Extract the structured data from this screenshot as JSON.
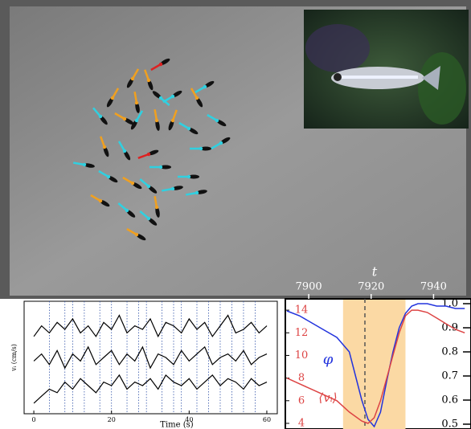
{
  "chart_data": [
    {
      "type": "line",
      "xlabel": "Time (s)",
      "ylabel": "vᵢ (cm/s)",
      "xlim": [
        -2.5,
        62.7
      ],
      "xticks": [
        0,
        20,
        40,
        60
      ],
      "ylim": [
        0,
        32
      ],
      "x": [
        0,
        2,
        4,
        6,
        8,
        10,
        12,
        14,
        16,
        18,
        20,
        22,
        24,
        26,
        28,
        30,
        32,
        34,
        36,
        38,
        40,
        42,
        44,
        46,
        48,
        50,
        52,
        54,
        56,
        58,
        60
      ],
      "series": [
        {
          "color": "#000000",
          "values": [
            22,
            25,
            23,
            26,
            24,
            27,
            23,
            25,
            22,
            26,
            24,
            28,
            23,
            25,
            24,
            27,
            22,
            26,
            25,
            23,
            27,
            24,
            26,
            22,
            25,
            28,
            23,
            24,
            26,
            23,
            25
          ]
        },
        {
          "color": "#000000",
          "values": [
            15,
            17,
            14,
            18,
            13,
            17,
            15,
            19,
            14,
            16,
            18,
            14,
            17,
            15,
            19,
            13,
            17,
            16,
            14,
            18,
            15,
            17,
            19,
            14,
            16,
            17,
            15,
            18,
            14,
            16,
            17
          ]
        },
        {
          "color": "#000000",
          "values": [
            3,
            5,
            7,
            6,
            9,
            7,
            10,
            8,
            6,
            9,
            8,
            11,
            7,
            9,
            8,
            10,
            7,
            11,
            9,
            8,
            10,
            7,
            9,
            11,
            8,
            10,
            9,
            7,
            10,
            8,
            9
          ]
        }
      ],
      "event_times": [
        4,
        8,
        10,
        13,
        17,
        20,
        24,
        27,
        29,
        33,
        36,
        38,
        42,
        45,
        48,
        51,
        54,
        57
      ]
    },
    {
      "type": "line",
      "xlabel": "t",
      "xlim": [
        7892.5,
        7952
      ],
      "xticks": [
        7900,
        7920,
        7940
      ],
      "ylim": [
        3.5,
        15
      ],
      "yticks": [
        14,
        12,
        10,
        8,
        6,
        4
      ],
      "y2lim": [
        0.48,
        1.02
      ],
      "y2ticks": [
        {
          "value": 1,
          "label": "1.0"
        },
        0.9,
        0.8,
        0.7,
        0.6,
        0.5
      ],
      "x": [
        7893,
        7897,
        7901,
        7905,
        7909,
        7913,
        7917,
        7919,
        7921,
        7923,
        7925,
        7927,
        7929,
        7931,
        7933,
        7935,
        7938,
        7941,
        7944,
        7947,
        7950
      ],
      "series": [
        {
          "name": "φ",
          "color": "#2233dd",
          "axis": "y2",
          "values": [
            0.97,
            0.95,
            0.92,
            0.89,
            0.86,
            0.8,
            0.6,
            0.52,
            0.49,
            0.55,
            0.68,
            0.8,
            0.9,
            0.96,
            0.99,
            1.0,
            1.0,
            0.99,
            0.99,
            0.98,
            0.98
          ]
        },
        {
          "name": "⟨vᵢ⟩",
          "color": "#dd4444",
          "values": [
            8,
            7.5,
            7,
            6.5,
            6,
            5,
            4.2,
            4,
            4.5,
            6,
            8,
            10,
            12,
            13.5,
            14,
            14,
            13.8,
            13.3,
            12.8,
            12.3,
            12
          ]
        }
      ],
      "shaded_span": [
        7911,
        7931
      ],
      "marker_line": 7918
    }
  ]
}
